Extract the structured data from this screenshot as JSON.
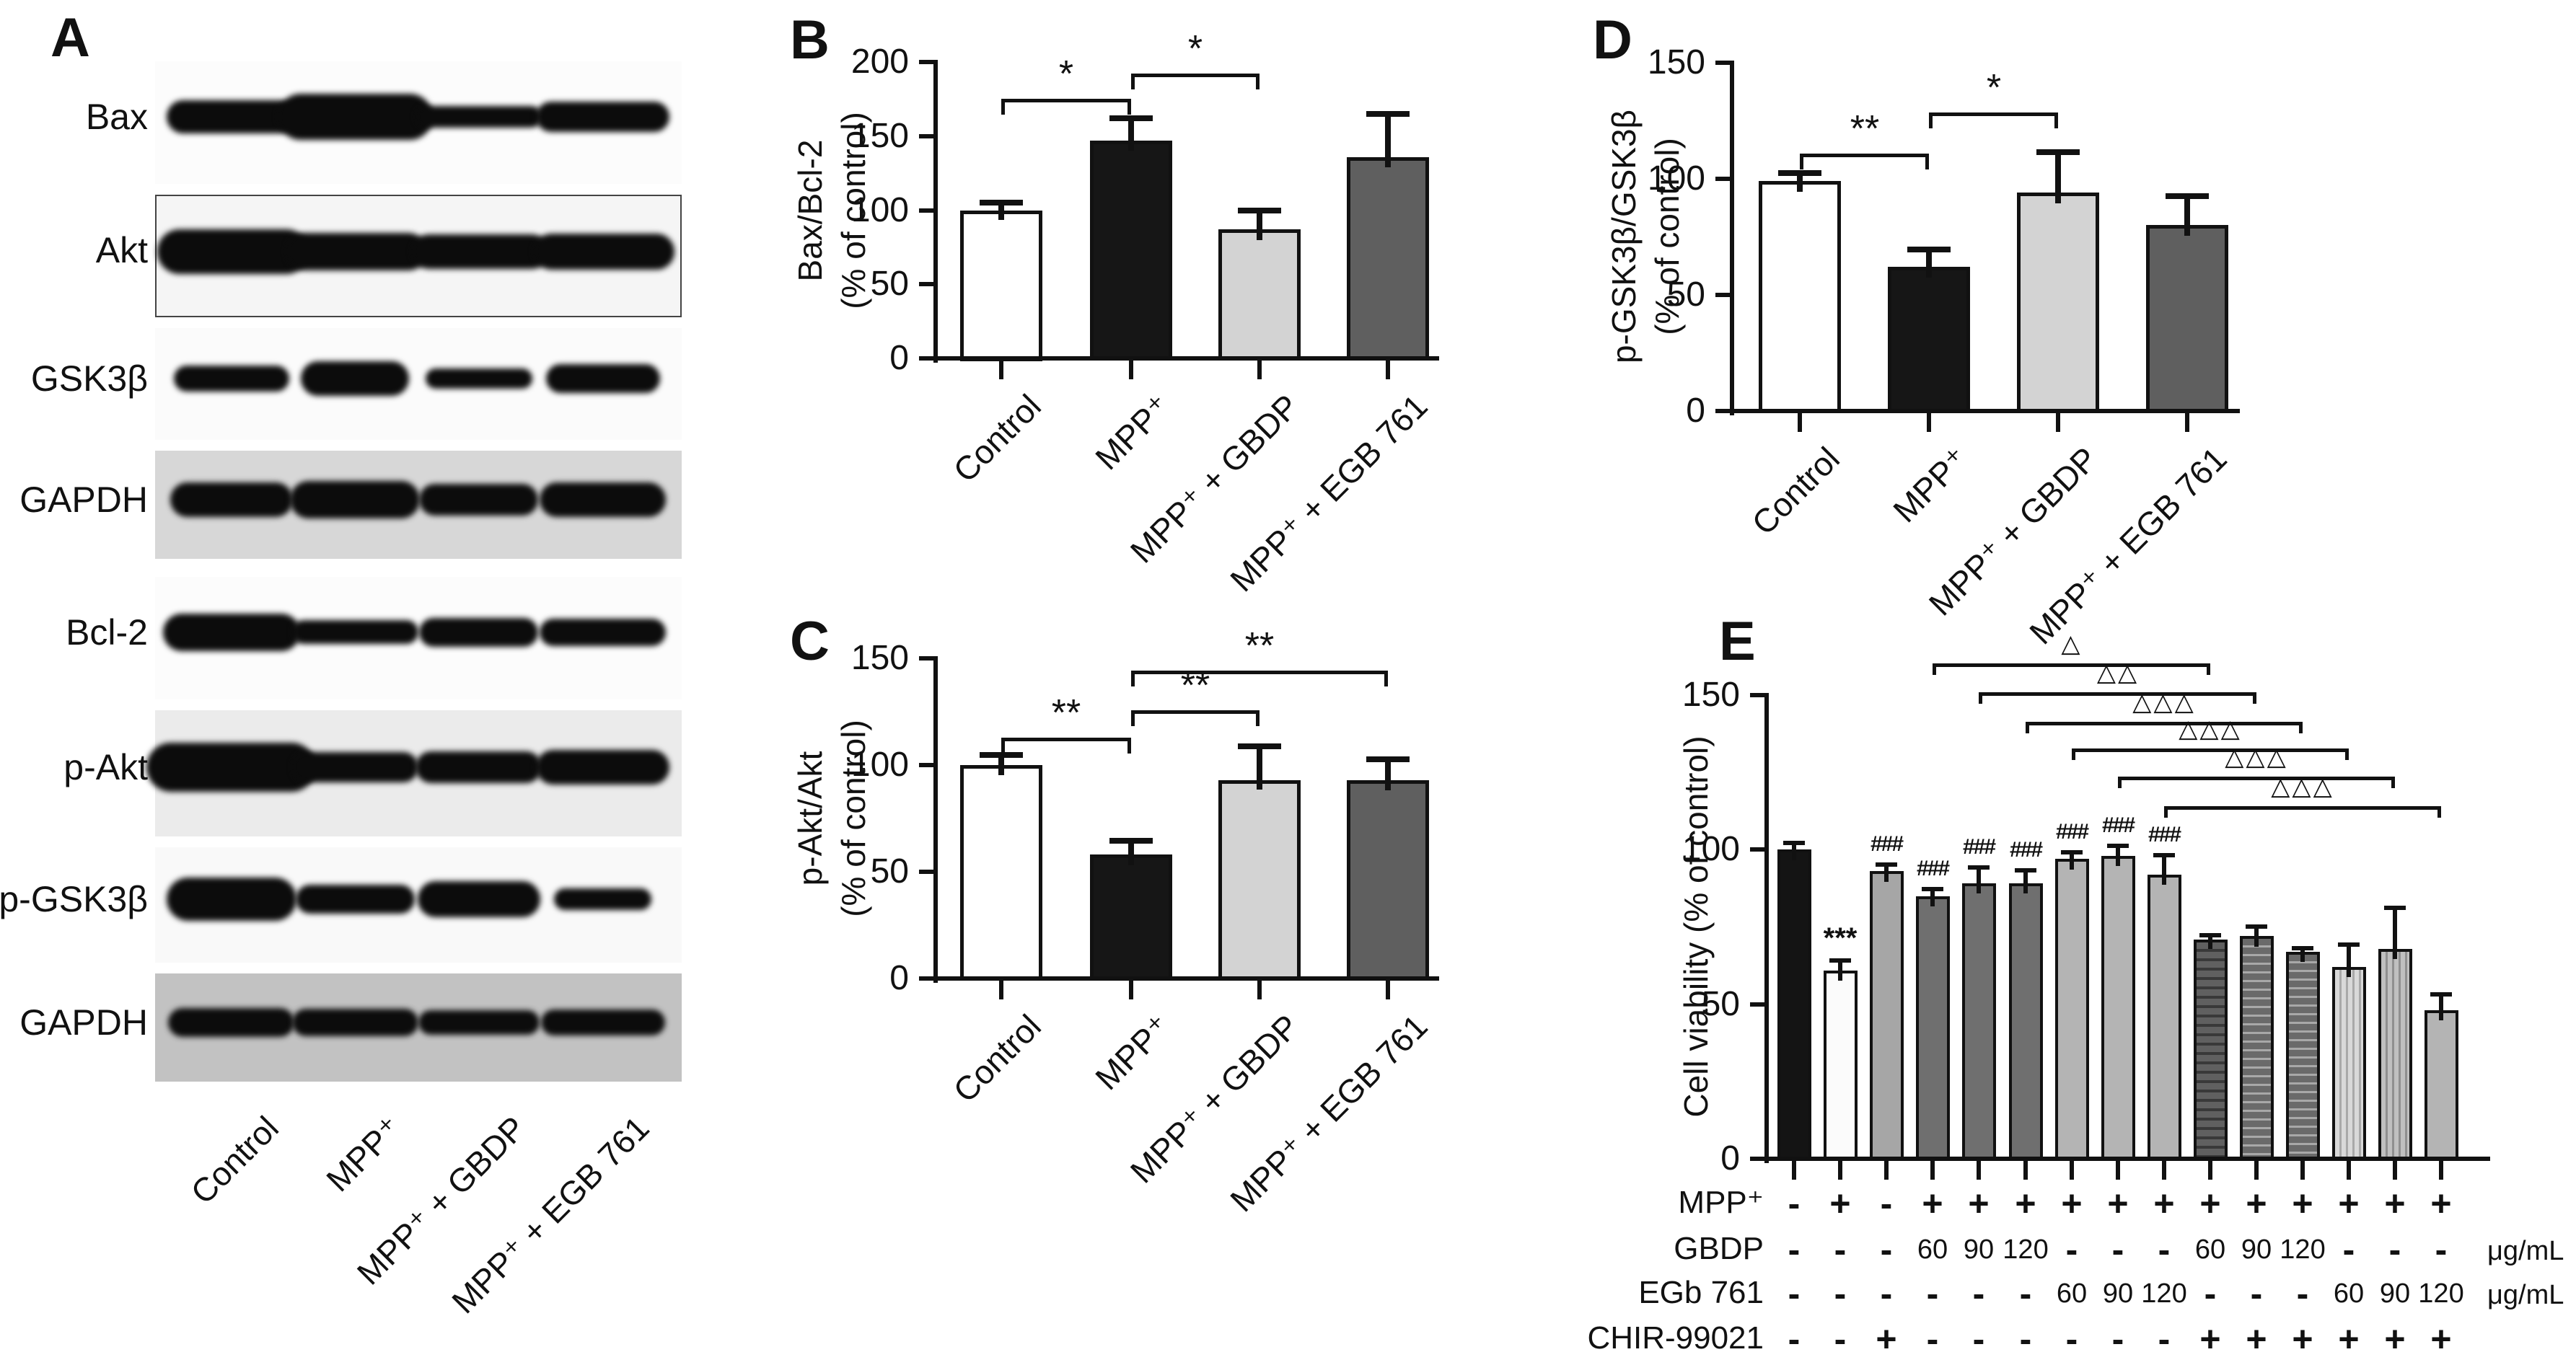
{
  "figure": {
    "background": "#ffffff",
    "ink": "#111111"
  },
  "panels": {
    "A": {
      "letter": "A",
      "blots": [
        {
          "label": "Bax",
          "bg": "#fcfcfc",
          "border": false,
          "bands": [
            [
              180,
              46
            ],
            [
              215,
              64
            ],
            [
              175,
              30
            ],
            [
              185,
              42
            ]
          ]
        },
        {
          "label": "Akt",
          "bg": "#f5f5f5",
          "border": true,
          "bands": [
            [
              210,
              62
            ],
            [
              195,
              52
            ],
            [
              190,
              48
            ],
            [
              195,
              50
            ]
          ]
        },
        {
          "label": "GSK3β",
          "bg": "#fbfbfb",
          "border": false,
          "bands": [
            [
              160,
              36
            ],
            [
              150,
              48
            ],
            [
              148,
              28
            ],
            [
              158,
              40
            ]
          ]
        },
        {
          "label": "GAPDH",
          "bg": "#d7d7d7",
          "border": false,
          "bands": [
            [
              170,
              48
            ],
            [
              180,
              52
            ],
            [
              165,
              44
            ],
            [
              175,
              48
            ]
          ]
        },
        {
          "label": "Bcl-2",
          "bg": "#fcfcfc",
          "border": false,
          "bands": [
            [
              190,
              52
            ],
            [
              175,
              33
            ],
            [
              165,
              40
            ],
            [
              175,
              38
            ]
          ]
        },
        {
          "label": "p-Akt",
          "bg": "#ebebeb",
          "border": false,
          "bands": [
            [
              235,
              68
            ],
            [
              175,
              42
            ],
            [
              175,
              44
            ],
            [
              185,
              48
            ]
          ]
        },
        {
          "label": "p-GSK3β",
          "bg": "#f9f9f9",
          "border": false,
          "bands": [
            [
              180,
              60
            ],
            [
              165,
              40
            ],
            [
              170,
              50
            ],
            [
              135,
              30
            ]
          ]
        },
        {
          "label": "GAPDH",
          "bg": "#c2c2c2",
          "border": false,
          "bands": [
            [
              175,
              40
            ],
            [
              175,
              38
            ],
            [
              168,
              34
            ],
            [
              172,
              36
            ]
          ]
        }
      ],
      "lane_labels": [
        "Control",
        "MPP⁺",
        "MPP⁺ + GBDP",
        "MPP⁺ + EGB 761"
      ]
    },
    "B": {
      "letter": "B"
    },
    "C": {
      "letter": "C"
    },
    "D": {
      "letter": "D"
    },
    "E": {
      "letter": "E"
    }
  },
  "chart_data": [
    {
      "id": "B",
      "type": "bar",
      "panel": "B",
      "ylabel_lines": [
        "Bax/Bcl-2",
        "(% of control)"
      ],
      "ylim": [
        0,
        200
      ],
      "yticks": [
        0,
        50,
        100,
        150,
        200
      ],
      "categories": [
        "Control",
        "MPP⁺",
        "MPP⁺ + GBDP",
        "MPP⁺ + EGB 761"
      ],
      "values": [
        100,
        147,
        87,
        136
      ],
      "errors": [
        4,
        14,
        12,
        28
      ],
      "bar_fills": [
        "#ffffff",
        "#161616",
        "#d3d3d3",
        "#5f5f5f"
      ],
      "significance": [
        {
          "from": 0,
          "to": 1,
          "label": "*"
        },
        {
          "from": 1,
          "to": 2,
          "label": "*"
        }
      ]
    },
    {
      "id": "C",
      "type": "bar",
      "panel": "C",
      "ylabel_lines": [
        "p-Akt/Akt",
        "(% of control)"
      ],
      "ylim": [
        0,
        150
      ],
      "yticks": [
        0,
        50,
        100,
        150
      ],
      "categories": [
        "Control",
        "MPP⁺",
        "MPP⁺ + GBDP",
        "MPP⁺ + EGB 761"
      ],
      "values": [
        100,
        58,
        93,
        93
      ],
      "errors": [
        4,
        6,
        15,
        9
      ],
      "bar_fills": [
        "#ffffff",
        "#161616",
        "#d3d3d3",
        "#5f5f5f"
      ],
      "significance": [
        {
          "from": 0,
          "to": 1,
          "label": "**"
        },
        {
          "from": 1,
          "to": 2,
          "label": "**"
        },
        {
          "from": 1,
          "to": 3,
          "label": "**"
        }
      ]
    },
    {
      "id": "D",
      "type": "bar",
      "panel": "D",
      "ylabel_lines": [
        "p-GSK3β/GSK3β",
        "(% of control)"
      ],
      "ylim": [
        0,
        150
      ],
      "yticks": [
        0,
        50,
        100,
        150
      ],
      "categories": [
        "Control",
        "MPP⁺",
        "MPP⁺ + GBDP",
        "MPP⁺ + EGB 761"
      ],
      "values": [
        99,
        62,
        94,
        80
      ],
      "errors": [
        3,
        7,
        17,
        12
      ],
      "bar_fills": [
        "#ffffff",
        "#161616",
        "#d3d3d3",
        "#5f5f5f"
      ],
      "significance": [
        {
          "from": 0,
          "to": 1,
          "label": "**"
        },
        {
          "from": 1,
          "to": 2,
          "label": "*"
        }
      ]
    },
    {
      "id": "E",
      "type": "bar",
      "panel": "E",
      "ylabel": "Cell viability (% of control)",
      "ylim": [
        0,
        150
      ],
      "yticks": [
        0,
        50,
        100,
        150
      ],
      "values": [
        100,
        61,
        93,
        85,
        89,
        89,
        97,
        98,
        92,
        71,
        72,
        67,
        62,
        68,
        48
      ],
      "errors": [
        2,
        3,
        2,
        2,
        5,
        4,
        2,
        3,
        6,
        1,
        3,
        1,
        7,
        13,
        5
      ],
      "bar_annotations": [
        "",
        "***",
        "###",
        "###",
        "###",
        "###",
        "###",
        "###",
        "###",
        "",
        "",
        "",
        "",
        "",
        ""
      ],
      "bar_styles": [
        "solid-black",
        "solid-white",
        "solid-gray-mid",
        "solid-gray-dark",
        "solid-gray-dark",
        "solid-gray-dark",
        "solid-gray-light",
        "solid-gray-light",
        "solid-gray-light",
        "hstripe-dark",
        "hstripe",
        "hstripe",
        "vstripe-light",
        "vstripe",
        "solid-gray-light2"
      ],
      "significance": [
        {
          "from": 3,
          "to": 9,
          "label": "△"
        },
        {
          "from": 4,
          "to": 10,
          "label": "△△"
        },
        {
          "from": 5,
          "to": 11,
          "label": "△△△"
        },
        {
          "from": 6,
          "to": 12,
          "label": "△△△"
        },
        {
          "from": 7,
          "to": 13,
          "label": "△△△"
        },
        {
          "from": 8,
          "to": 14,
          "label": "△△△"
        }
      ],
      "treatments": {
        "rows": [
          {
            "label": "MPP⁺",
            "values": [
              "-",
              "+",
              "-",
              "+",
              "+",
              "+",
              "+",
              "+",
              "+",
              "+",
              "+",
              "+",
              "+",
              "+",
              "+"
            ],
            "unit": ""
          },
          {
            "label": "GBDP",
            "values": [
              "-",
              "-",
              "-",
              "60",
              "90",
              "120",
              "-",
              "-",
              "-",
              "60",
              "90",
              "120",
              "-",
              "-",
              "-"
            ],
            "unit": "μg/mL"
          },
          {
            "label": "EGb 761",
            "values": [
              "-",
              "-",
              "-",
              "-",
              "-",
              "-",
              "60",
              "90",
              "120",
              "-",
              "-",
              "-",
              "60",
              "90",
              "120"
            ],
            "unit": "μg/mL"
          },
          {
            "label": "CHIR-99021",
            "values": [
              "-",
              "-",
              "+",
              "-",
              "-",
              "-",
              "-",
              "-",
              "-",
              "+",
              "+",
              "+",
              "+",
              "+",
              "+"
            ],
            "unit": ""
          }
        ]
      }
    }
  ]
}
